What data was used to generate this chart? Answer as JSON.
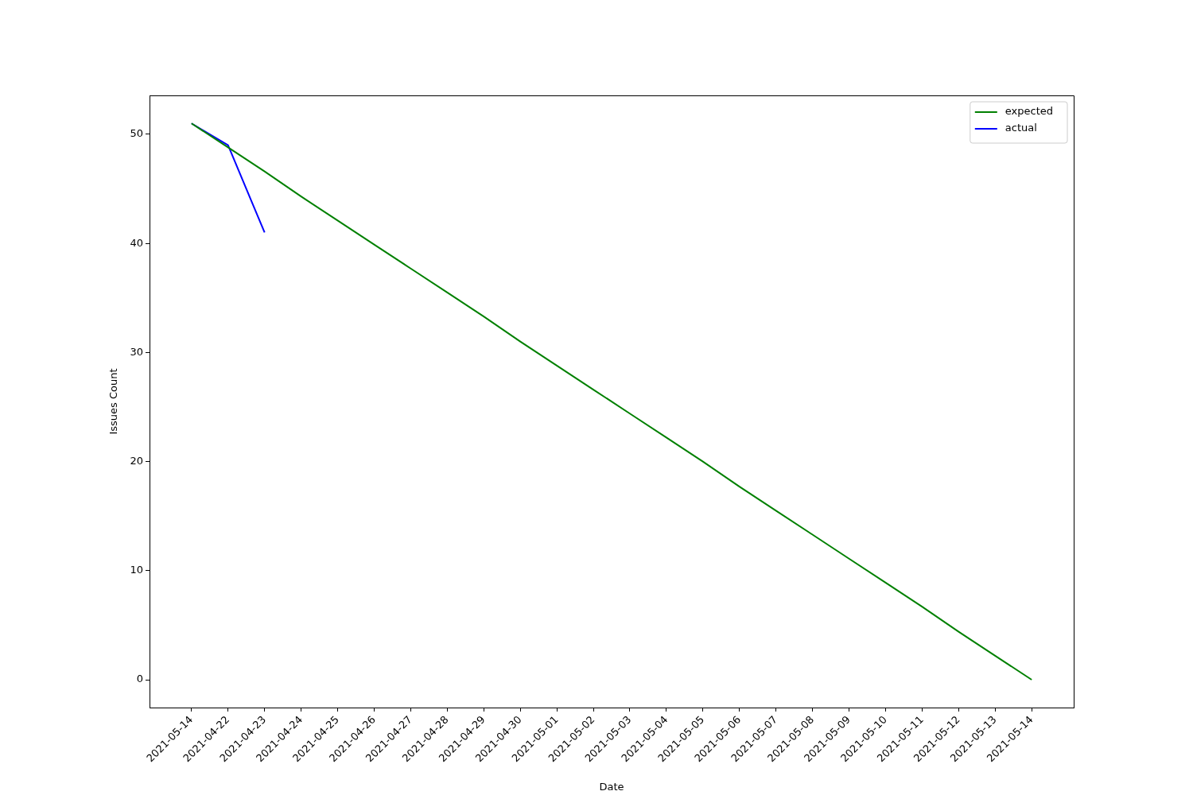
{
  "chart_data": {
    "type": "line",
    "xlabel": "Date",
    "ylabel": "Issues Count",
    "categories": [
      "2021-05-14",
      "2021-04-22",
      "2021-04-23",
      "2021-04-24",
      "2021-04-25",
      "2021-04-26",
      "2021-04-27",
      "2021-04-28",
      "2021-04-29",
      "2021-04-30",
      "2021-05-01",
      "2021-05-02",
      "2021-05-03",
      "2021-05-04",
      "2021-05-05",
      "2021-05-06",
      "2021-05-07",
      "2021-05-08",
      "2021-05-09",
      "2021-05-10",
      "2021-05-11",
      "2021-05-12",
      "2021-05-13",
      "2021-05-14"
    ],
    "series": [
      {
        "name": "expected",
        "color": "#008000",
        "values": [
          51,
          48.8,
          46.6,
          44.3,
          42.1,
          39.9,
          37.7,
          35.5,
          33.3,
          31.0,
          28.8,
          26.6,
          24.4,
          22.2,
          20.0,
          17.7,
          15.5,
          13.3,
          11.1,
          8.9,
          6.7,
          4.4,
          2.2,
          0
        ]
      },
      {
        "name": "actual",
        "color": "#0000ff",
        "values": [
          51,
          49,
          41,
          null,
          null,
          null,
          null,
          null,
          null,
          null,
          null,
          null,
          null,
          null,
          null,
          null,
          null,
          null,
          null,
          null,
          null,
          null,
          null,
          null
        ]
      }
    ],
    "ylim": [
      -2.55,
      53.57
    ],
    "yticks": [
      0,
      10,
      20,
      30,
      40,
      50
    ],
    "grid": false,
    "legend": "top right",
    "marker": "none",
    "line_style": "solid"
  }
}
